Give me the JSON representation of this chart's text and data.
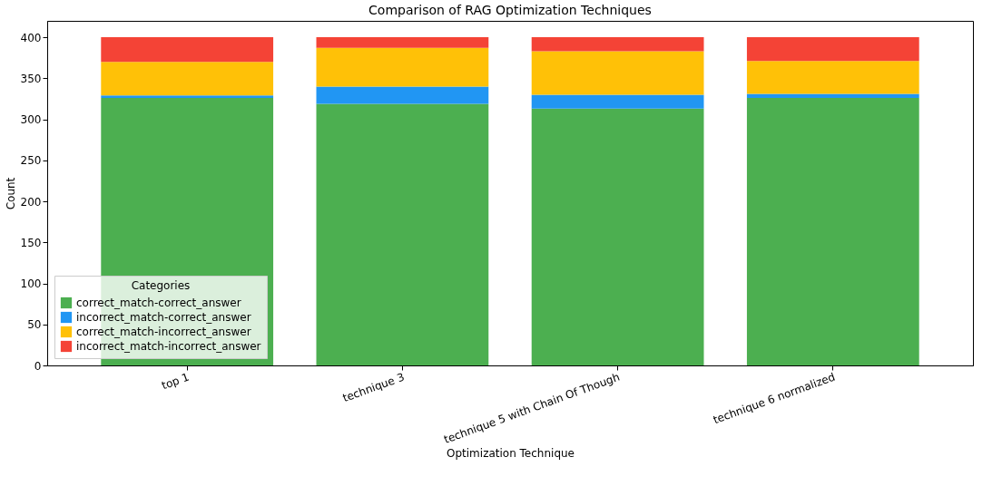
{
  "chart_data": {
    "type": "bar",
    "title": "Comparison of RAG Optimization Techniques",
    "xlabel": "Optimization Technique",
    "ylabel": "Count",
    "legend_title": "Categories",
    "stacked": true,
    "categories": [
      "top 1",
      "technique 3",
      "technique 5 with Chain Of Though",
      "technique 6 normalized"
    ],
    "series": [
      {
        "name": "correct_match-correct_answer",
        "color": "#4caf50",
        "values": [
          326,
          319,
          313,
          326
        ]
      },
      {
        "name": "incorrect_match-correct_answer",
        "color": "#2196f3",
        "values": [
          3,
          21,
          17,
          5
        ]
      },
      {
        "name": "correct_match-incorrect_answer",
        "color": "#ffc107",
        "values": [
          41,
          47,
          53,
          40
        ]
      },
      {
        "name": "incorrect_match-incorrect_answer",
        "color": "#f44336",
        "values": [
          30,
          13,
          17,
          29
        ]
      }
    ],
    "ylim": [
      0,
      420
    ],
    "yticks": [
      0,
      50,
      100,
      150,
      200,
      250,
      300,
      350,
      400
    ],
    "grid": false,
    "legend": "bottom left"
  }
}
